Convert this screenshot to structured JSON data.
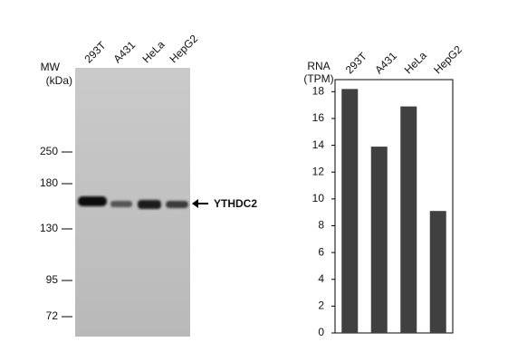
{
  "blot": {
    "lanes": [
      "293T",
      "A431",
      "HeLa",
      "HepG2"
    ],
    "mw_label": [
      "MW",
      "(kDa)"
    ],
    "markers": [
      250,
      180,
      130,
      95,
      72
    ],
    "band_label": "YTHDC2"
  },
  "chart_data": {
    "type": "bar",
    "ylabel": [
      "RNA",
      "(TPM)"
    ],
    "categories": [
      "293T",
      "A431",
      "HeLa",
      "HepG2"
    ],
    "values": [
      18.2,
      13.9,
      16.9,
      9.1
    ],
    "color": "#404040",
    "ylim": [
      0,
      18.9
    ],
    "yticks": [
      0,
      2,
      4,
      6,
      8,
      10,
      12,
      14,
      16,
      18
    ],
    "grid": false
  }
}
